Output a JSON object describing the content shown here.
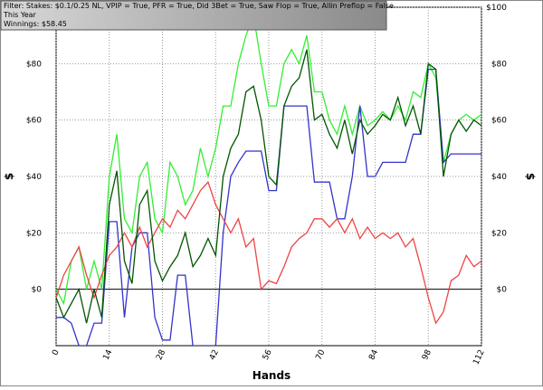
{
  "chart_data": {
    "type": "line",
    "annotations": [
      "Filter: Stakes: $0.1/0.25 NL, VPIP = True, PFR = True, Did 3Bet = True, Saw Flop = True, Allin Preflop = False",
      "This Year",
      "Winnings: $58.45"
    ],
    "x_label": "Hands",
    "y_label": "$",
    "x": [
      0,
      2,
      4,
      6,
      8,
      10,
      12,
      14,
      16,
      18,
      20,
      22,
      24,
      26,
      28,
      30,
      32,
      34,
      36,
      38,
      40,
      42,
      44,
      46,
      48,
      50,
      52,
      54,
      56,
      58,
      60,
      62,
      64,
      66,
      68,
      70,
      72,
      74,
      76,
      78,
      80,
      82,
      84,
      86,
      88,
      90,
      92,
      94,
      96,
      98,
      100,
      102,
      104,
      106,
      108,
      110,
      112
    ],
    "xlim": [
      0,
      112
    ],
    "xticks": [
      0,
      14,
      28,
      42,
      56,
      70,
      84,
      98,
      112
    ],
    "ylim": [
      -20,
      100
    ],
    "yticks": [
      {
        "value": 0,
        "label": "$0"
      },
      {
        "value": 20,
        "label": "$20"
      },
      {
        "value": 40,
        "label": "$40"
      },
      {
        "value": 60,
        "label": "$60"
      },
      {
        "value": 80,
        "label": "$80"
      },
      {
        "value": 100,
        "label": "$100"
      }
    ],
    "grid": true,
    "series": [
      {
        "color": "#33ee33",
        "values": [
          0,
          -5,
          10,
          15,
          0,
          10,
          0,
          40,
          55,
          25,
          20,
          40,
          45,
          25,
          20,
          45,
          40,
          30,
          35,
          50,
          40,
          50,
          65,
          65,
          80,
          90,
          97,
          80,
          65,
          65,
          80,
          85,
          80,
          90,
          70,
          70,
          60,
          55,
          65,
          55,
          65,
          58,
          60,
          63,
          60,
          65,
          60,
          70,
          68,
          80,
          75,
          45,
          55,
          60,
          62,
          60,
          62
        ]
      },
      {
        "color": "#3333cc",
        "values": [
          -10,
          -10,
          -12,
          -20,
          -20,
          -12,
          -12,
          24,
          24,
          -10,
          15,
          20,
          20,
          -10,
          -18,
          -18,
          5,
          5,
          -20,
          -20,
          -20,
          -20,
          20,
          40,
          45,
          49,
          49,
          49,
          35,
          35,
          65,
          65,
          65,
          65,
          38,
          38,
          38,
          25,
          25,
          40,
          65,
          40,
          40,
          45,
          45,
          45,
          45,
          55,
          55,
          78,
          78,
          45,
          48,
          48,
          48,
          48,
          48
        ]
      },
      {
        "color": "#ee4444",
        "values": [
          -3,
          5,
          10,
          15,
          5,
          -3,
          5,
          12,
          15,
          20,
          15,
          22,
          15,
          20,
          25,
          22,
          28,
          25,
          30,
          35,
          38,
          30,
          25,
          20,
          25,
          15,
          18,
          0,
          3,
          2,
          8,
          15,
          18,
          20,
          25,
          25,
          22,
          25,
          20,
          25,
          18,
          22,
          18,
          20,
          18,
          20,
          15,
          18,
          8,
          -3,
          -12,
          -8,
          3,
          5,
          12,
          8,
          10
        ]
      },
      {
        "color": "#005500",
        "values": [
          -3,
          -10,
          -5,
          0,
          -12,
          0,
          -10,
          30,
          42,
          10,
          2,
          30,
          35,
          10,
          3,
          8,
          12,
          20,
          8,
          12,
          18,
          12,
          40,
          50,
          55,
          70,
          72,
          60,
          40,
          37,
          65,
          72,
          75,
          85,
          60,
          62,
          55,
          50,
          60,
          48,
          60,
          55,
          58,
          62,
          60,
          68,
          58,
          65,
          55,
          80,
          78,
          40,
          55,
          60,
          56,
          60,
          58
        ]
      }
    ]
  }
}
